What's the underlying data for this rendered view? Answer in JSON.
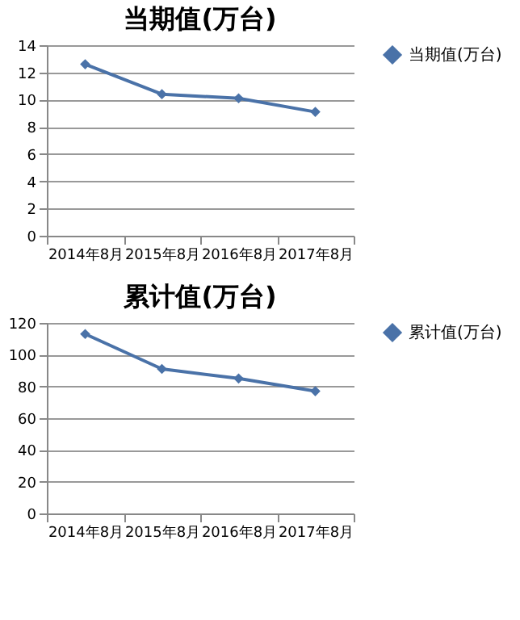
{
  "chart_data": [
    {
      "type": "line",
      "title": "当期值(万台)",
      "categories": [
        "2014年8月",
        "2015年8月",
        "2016年8月",
        "2017年8月"
      ],
      "series": [
        {
          "name": "当期值(万台)",
          "color": "#4a72a8",
          "values": [
            12.6,
            10.4,
            10.1,
            9.1
          ]
        }
      ],
      "ylim": [
        0,
        14
      ],
      "yticks": [
        0,
        2,
        4,
        6,
        8,
        10,
        12,
        14
      ],
      "grid": "y",
      "legend": "right",
      "marker": "diamond",
      "line_style": "solid"
    },
    {
      "type": "line",
      "title": "累计值(万台)",
      "categories": [
        "2014年8月",
        "2015年8月",
        "2016年8月",
        "2017年8月"
      ],
      "series": [
        {
          "name": "累计值(万台)",
          "color": "#4a72a8",
          "values": [
            113,
            91,
            85,
            77
          ]
        }
      ],
      "ylim": [
        0,
        120
      ],
      "yticks": [
        0,
        20,
        40,
        60,
        80,
        100,
        120
      ],
      "grid": "y",
      "legend": "right",
      "marker": "diamond",
      "line_style": "solid"
    }
  ]
}
